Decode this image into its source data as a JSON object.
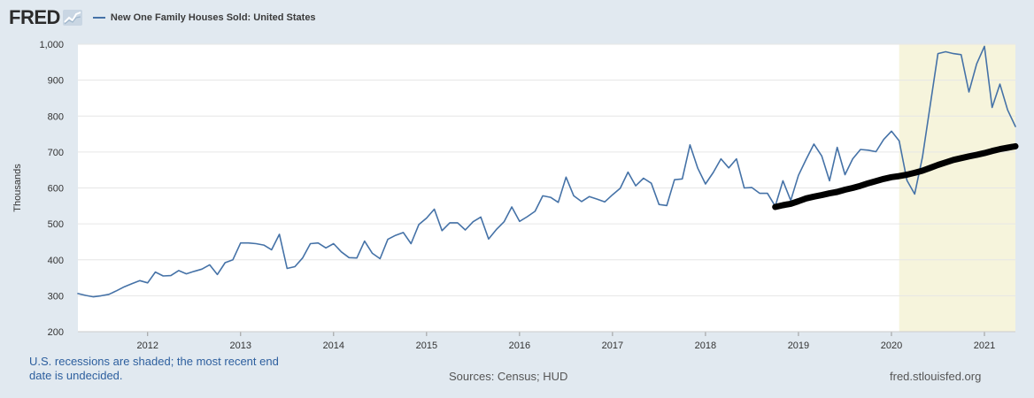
{
  "logo": {
    "text": "FRED",
    "icon": "line-chart-badge-icon"
  },
  "colors": {
    "background": "#e1e9f0",
    "plot_background": "#ffffff",
    "series": "#4572a7",
    "trend": "#000000",
    "recession": "#f6f4dc",
    "grid": "#e6e6e6"
  },
  "footer": {
    "recession_note": "U.S. recessions are shaded; the most recent end date is undecided.",
    "sources": "Sources: Census; HUD",
    "site": "fred.stlouisfed.org"
  },
  "chart_data": {
    "type": "line",
    "title": "",
    "xlabel": "",
    "ylabel": "Thousands",
    "ylim": [
      200,
      1000
    ],
    "yticks": [
      200,
      300,
      400,
      500,
      600,
      700,
      800,
      900,
      1000
    ],
    "ytick_labels": [
      "200",
      "300",
      "400",
      "500",
      "600",
      "700",
      "800",
      "900",
      "1,000"
    ],
    "xlim": [
      "2011-04",
      "2021-05"
    ],
    "xticks": [
      "2012",
      "2013",
      "2014",
      "2015",
      "2016",
      "2017",
      "2018",
      "2019",
      "2020",
      "2021"
    ],
    "grid": true,
    "legend": "top-left",
    "recessions": [
      {
        "start": "2020-02",
        "end": "2021-05"
      }
    ],
    "series": [
      {
        "name": "New One Family Houses Sold: United States",
        "style": "line",
        "x": [
          "2011-04",
          "2011-05",
          "2011-06",
          "2011-07",
          "2011-08",
          "2011-09",
          "2011-10",
          "2011-11",
          "2011-12",
          "2012-01",
          "2012-02",
          "2012-03",
          "2012-04",
          "2012-05",
          "2012-06",
          "2012-07",
          "2012-08",
          "2012-09",
          "2012-10",
          "2012-11",
          "2012-12",
          "2013-01",
          "2013-02",
          "2013-03",
          "2013-04",
          "2013-05",
          "2013-06",
          "2013-07",
          "2013-08",
          "2013-09",
          "2013-10",
          "2013-11",
          "2013-12",
          "2014-01",
          "2014-02",
          "2014-03",
          "2014-04",
          "2014-05",
          "2014-06",
          "2014-07",
          "2014-08",
          "2014-09",
          "2014-10",
          "2014-11",
          "2014-12",
          "2015-01",
          "2015-02",
          "2015-03",
          "2015-04",
          "2015-05",
          "2015-06",
          "2015-07",
          "2015-08",
          "2015-09",
          "2015-10",
          "2015-11",
          "2015-12",
          "2016-01",
          "2016-02",
          "2016-03",
          "2016-04",
          "2016-05",
          "2016-06",
          "2016-07",
          "2016-08",
          "2016-09",
          "2016-10",
          "2016-11",
          "2016-12",
          "2017-01",
          "2017-02",
          "2017-03",
          "2017-04",
          "2017-05",
          "2017-06",
          "2017-07",
          "2017-08",
          "2017-09",
          "2017-10",
          "2017-11",
          "2017-12",
          "2018-01",
          "2018-02",
          "2018-03",
          "2018-04",
          "2018-05",
          "2018-06",
          "2018-07",
          "2018-08",
          "2018-09",
          "2018-10",
          "2018-11",
          "2018-12",
          "2019-01",
          "2019-02",
          "2019-03",
          "2019-04",
          "2019-05",
          "2019-06",
          "2019-07",
          "2019-08",
          "2019-09",
          "2019-10",
          "2019-11",
          "2019-12",
          "2020-01",
          "2020-02",
          "2020-03",
          "2020-04",
          "2020-05",
          "2020-06",
          "2020-07",
          "2020-08",
          "2020-09",
          "2020-10",
          "2020-11",
          "2020-12",
          "2021-01",
          "2021-02",
          "2021-03",
          "2021-04",
          "2021-05"
        ],
        "values": [
          306,
          301,
          297,
          300,
          304,
          314,
          325,
          334,
          342,
          336,
          366,
          355,
          356,
          370,
          361,
          368,
          374,
          386,
          359,
          392,
          400,
          447,
          447,
          445,
          441,
          428,
          471,
          376,
          381,
          405,
          445,
          447,
          433,
          445,
          422,
          406,
          405,
          452,
          418,
          403,
          457,
          468,
          476,
          445,
          498,
          516,
          541,
          481,
          503,
          503,
          483,
          506,
          519,
          458,
          484,
          506,
          547,
          507,
          520,
          535,
          578,
          574,
          560,
          630,
          578,
          562,
          576,
          569,
          561,
          581,
          599,
          644,
          606,
          627,
          613,
          554,
          551,
          623,
          625,
          720,
          655,
          611,
          643,
          681,
          656,
          681,
          600,
          601,
          585,
          585,
          549,
          620,
          565,
          635,
          680,
          722,
          689,
          620,
          713,
          637,
          681,
          707,
          705,
          701,
          735,
          758,
          731,
          621,
          583,
          686,
          829,
          974,
          979,
          974,
          971,
          867,
          945,
          994,
          824,
          889,
          817,
          771
        ]
      },
      {
        "name": "",
        "style": "thick-line",
        "x": [
          "2018-10",
          "2018-11",
          "2018-12",
          "2019-01",
          "2019-02",
          "2019-03",
          "2019-04",
          "2019-05",
          "2019-06",
          "2019-07",
          "2019-08",
          "2019-09",
          "2019-10",
          "2019-11",
          "2019-12",
          "2020-01",
          "2020-02",
          "2020-03",
          "2020-04",
          "2020-05",
          "2020-06",
          "2020-07",
          "2020-08",
          "2020-09",
          "2020-10",
          "2020-11",
          "2020-12",
          "2021-01",
          "2021-02",
          "2021-03",
          "2021-04",
          "2021-05"
        ],
        "values": [
          547,
          552,
          556,
          563,
          571,
          576,
          580,
          585,
          589,
          595,
          600,
          606,
          613,
          619,
          625,
          630,
          633,
          637,
          642,
          648,
          656,
          664,
          671,
          678,
          683,
          688,
          692,
          697,
          703,
          708,
          712,
          716
        ]
      }
    ]
  }
}
